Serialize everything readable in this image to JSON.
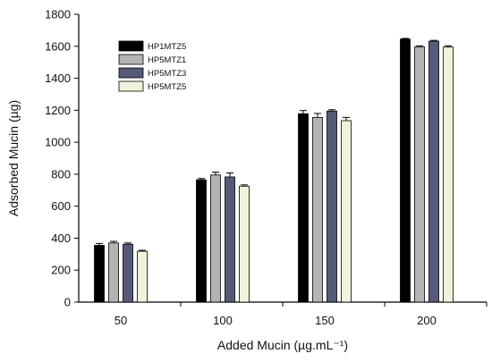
{
  "chart_data": {
    "type": "bar",
    "title": "",
    "xlabel": "Added Mucin (µg.mL⁻¹)",
    "ylabel": "Adsorbed Mucin (µg)",
    "ylim": [
      0,
      1800
    ],
    "yticks": [
      "0",
      "200",
      "400",
      "600",
      "800",
      "1000",
      "1200",
      "1400",
      "1600",
      "1800"
    ],
    "categories": [
      "50",
      "100",
      "150",
      "200"
    ],
    "grid": false,
    "legend_position": "top-left",
    "series": [
      {
        "name": "HP1MTZ5",
        "color": "#000000",
        "values": [
          355,
          765,
          1178,
          1645
        ],
        "errors": [
          12,
          8,
          20,
          4
        ]
      },
      {
        "name": "HP5MTZ1",
        "color": "#b4b4b4",
        "values": [
          370,
          795,
          1155,
          1597
        ],
        "errors": [
          10,
          18,
          25,
          6
        ]
      },
      {
        "name": "HP5MTZ3",
        "color": "#555a78",
        "values": [
          362,
          783,
          1195,
          1632
        ],
        "errors": [
          8,
          25,
          8,
          5
        ]
      },
      {
        "name": "HP5MTZ5",
        "color": "#f0f3dc",
        "values": [
          318,
          725,
          1135,
          1595
        ],
        "errors": [
          6,
          8,
          20,
          8
        ]
      }
    ]
  }
}
